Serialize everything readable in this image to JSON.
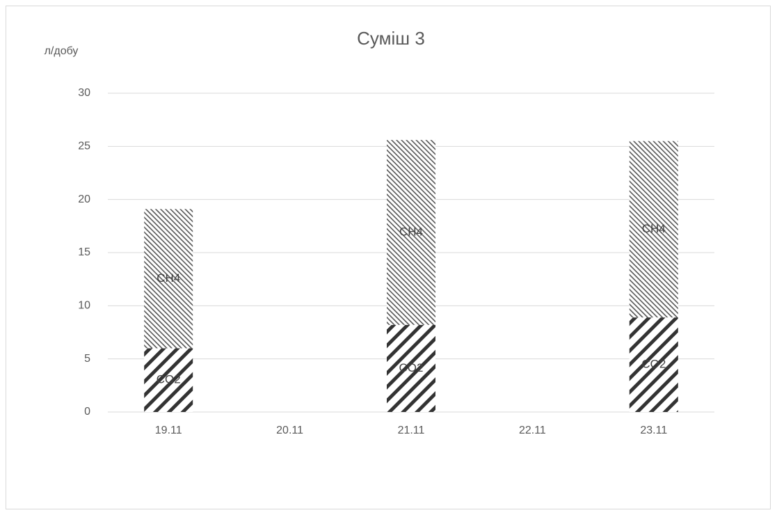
{
  "chart_data": {
    "type": "stacked_bar",
    "title": "Суміш 3",
    "y_label": "л/добу",
    "categories": [
      "19.11",
      "20.11",
      "21.11",
      "22.11",
      "23.11"
    ],
    "series": [
      {
        "name": "CO2",
        "color": "#333333",
        "values": [
          6.0,
          null,
          8.2,
          null,
          8.9
        ]
      },
      {
        "name": "CH4",
        "color": "#555555",
        "values": [
          13.1,
          null,
          17.4,
          null,
          16.6
        ]
      }
    ],
    "ylim": [
      0,
      30
    ],
    "yticks": [
      0,
      5,
      10,
      15,
      20,
      25,
      30
    ],
    "grid": true,
    "data_labels": true
  }
}
